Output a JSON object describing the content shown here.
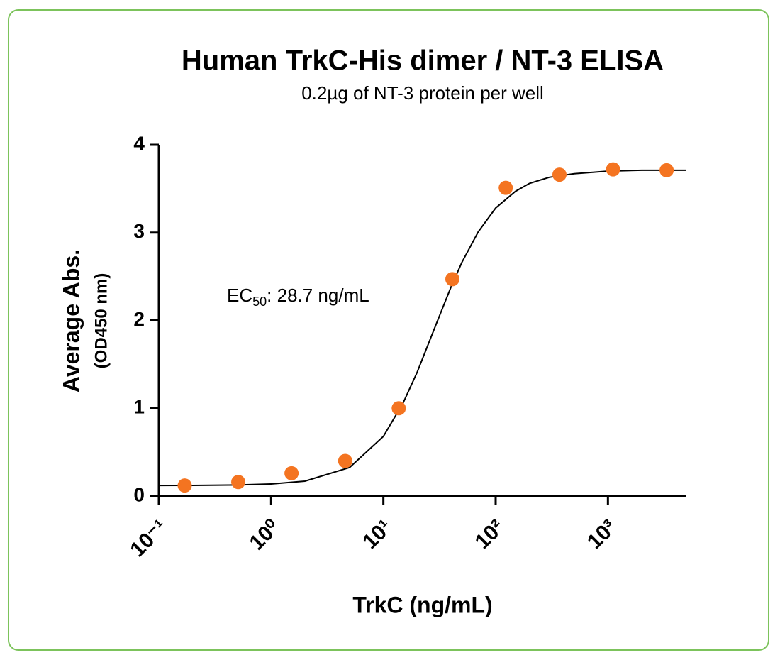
{
  "chart_data": {
    "type": "scatter",
    "title": "Human TrkC-His dimer / NT-3 ELISA",
    "subtitle": "0.2µg of NT-3 protein per well",
    "xlabel": "TrkC (ng/mL)",
    "ylabel": "Average Abs.",
    "ylabel_sub": "(OD450 nm)",
    "annotation": {
      "text": "EC",
      "subscript": "50",
      "rest": ": 28.7 ng/mL"
    },
    "xscale": "log",
    "xlim": [
      0.1,
      5000
    ],
    "xticks": [
      {
        "value": 0.1,
        "label": "10⁻¹"
      },
      {
        "value": 1,
        "label": "10⁰"
      },
      {
        "value": 10,
        "label": "10¹"
      },
      {
        "value": 100,
        "label": "10²"
      },
      {
        "value": 1000,
        "label": "10³"
      }
    ],
    "ylim": [
      0,
      4
    ],
    "yticks": [
      0,
      1,
      2,
      3,
      4
    ],
    "color": "#f47421",
    "x": [
      0.17,
      0.51,
      1.52,
      4.57,
      13.7,
      41.2,
      123,
      370,
      1111,
      3333
    ],
    "values": [
      0.12,
      0.16,
      0.26,
      0.4,
      1.0,
      2.47,
      3.51,
      3.66,
      3.72,
      3.71
    ],
    "curve": {
      "color": "#000000",
      "x": [
        0.1,
        0.2,
        0.5,
        1,
        2,
        5,
        10,
        15,
        20,
        30,
        40,
        50,
        70,
        100,
        150,
        200,
        300,
        500,
        1000,
        2000,
        5000
      ],
      "values": [
        0.12,
        0.121,
        0.126,
        0.137,
        0.17,
        0.326,
        0.68,
        1.06,
        1.41,
        1.98,
        2.38,
        2.66,
        3.01,
        3.28,
        3.47,
        3.56,
        3.63,
        3.67,
        3.7,
        3.71,
        3.71
      ]
    }
  }
}
